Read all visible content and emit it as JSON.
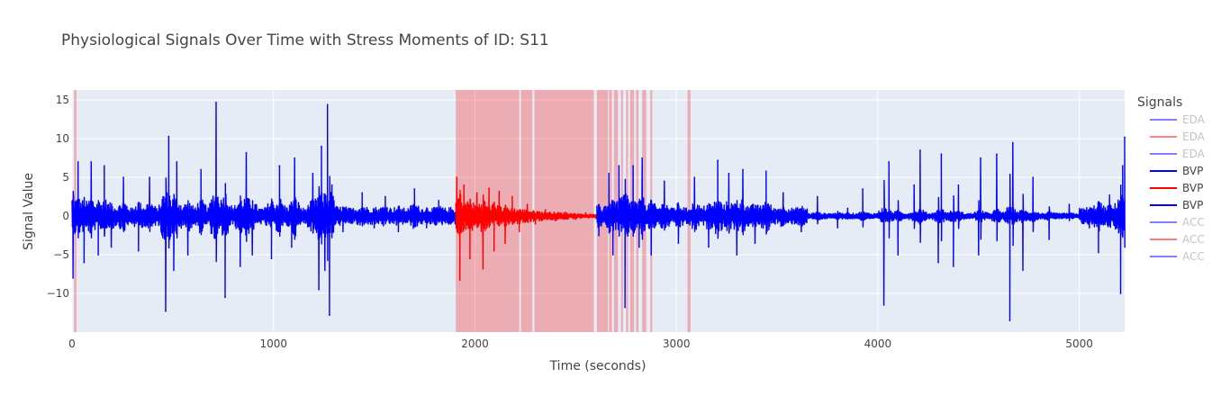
{
  "chart_data": {
    "type": "line",
    "title": "Physiological Signals Over Time with Stress Moments of ID: S11",
    "xlabel": "Time (seconds)",
    "ylabel": "Signal Value",
    "xlim": [
      0,
      5225
    ],
    "ylim": [
      -15,
      16.3
    ],
    "x_ticks": [
      0,
      1000,
      2000,
      3000,
      4000,
      5000
    ],
    "x_tick_labels": [
      "0",
      "1000",
      "2000",
      "3000",
      "4000",
      "5000"
    ],
    "y_ticks": [
      -10,
      -5,
      0,
      5,
      10,
      15
    ],
    "y_tick_labels": [
      "−10",
      "−5",
      "0",
      "5",
      "10",
      "15"
    ],
    "grid": true,
    "stress_regions": [
      [
        10,
        22
      ],
      [
        1905,
        2220
      ],
      [
        2228,
        2285
      ],
      [
        2295,
        2590
      ],
      [
        2605,
        2660
      ],
      [
        2665,
        2680
      ],
      [
        2690,
        2710
      ],
      [
        2725,
        2735
      ],
      [
        2750,
        2760
      ],
      [
        2770,
        2790
      ],
      [
        2800,
        2812
      ],
      [
        2830,
        2850
      ],
      [
        2870,
        2880
      ],
      [
        3055,
        3070
      ]
    ],
    "legend_title": "Signals",
    "legend_placement": "right",
    "legend": [
      {
        "name": "EDA",
        "color": "#0000ff",
        "faded": true
      },
      {
        "name": "EDA",
        "color": "#ff0000",
        "faded": true
      },
      {
        "name": "EDA",
        "color": "#0000ff",
        "faded": true
      },
      {
        "name": "BVP",
        "color": "#0000ff",
        "faded": false
      },
      {
        "name": "BVP",
        "color": "#ff0000",
        "faded": false
      },
      {
        "name": "BVP",
        "color": "#0000ff",
        "faded": false
      },
      {
        "name": "ACC",
        "color": "#0000ff",
        "faded": true
      },
      {
        "name": "ACC",
        "color": "#ff0000",
        "faded": true
      },
      {
        "name": "ACC",
        "color": "#0000ff",
        "faded": true
      }
    ],
    "series": [
      {
        "name": "BVP",
        "color": "#0000ff",
        "segment": [
          0,
          1905
        ],
        "x": [
          5,
          30,
          60,
          95,
          130,
          160,
          195,
          255,
          330,
          385,
          465,
          480,
          505,
          520,
          575,
          640,
          715,
          760,
          835,
          865,
          895,
          990,
          1030,
          1090,
          1105,
          1195,
          1225,
          1238,
          1255,
          1268,
          1278,
          1290,
          1345,
          1440,
          1500,
          1555,
          1620,
          1700,
          1760,
          1820,
          1880
        ],
        "y": [
          -8,
          7,
          -6,
          7,
          -5,
          6.5,
          -4,
          5,
          -4.5,
          5,
          -12.3,
          10.3,
          -7,
          7,
          -5,
          6,
          14.7,
          -10.5,
          -6.5,
          8.2,
          -5,
          -5.5,
          6.5,
          -4,
          7.5,
          5.5,
          -9.5,
          9,
          -7,
          14.4,
          -12.8,
          4,
          -2,
          3,
          -1.5,
          2.5,
          -2,
          3.5,
          -1.5,
          2,
          -1
        ]
      },
      {
        "name": "BVP",
        "color": "#ff0000",
        "segment": [
          1905,
          2605
        ],
        "x": [
          1910,
          1925,
          1945,
          1975,
          2010,
          2040,
          2070,
          2095,
          2120,
          2150,
          2185,
          2220,
          2260,
          2300,
          2350,
          2400,
          2450,
          2500,
          2550,
          2600
        ],
        "y": [
          5,
          -8.3,
          4,
          -5.5,
          3,
          -6.8,
          3.6,
          -4.5,
          3.2,
          -3.5,
          2.5,
          -2,
          1.5,
          -1,
          0.8,
          -0.6,
          0.5,
          -0.4,
          0.4,
          -0.3
        ]
      },
      {
        "name": "BVP",
        "color": "#0000ff",
        "segment": [
          2605,
          5225
        ],
        "x": [
          2615,
          2665,
          2685,
          2715,
          2745,
          2785,
          2815,
          2830,
          2875,
          2940,
          3010,
          3090,
          3160,
          3205,
          3260,
          3300,
          3330,
          3390,
          3445,
          3530,
          3620,
          3700,
          3800,
          3850,
          3925,
          4030,
          4055,
          4100,
          4180,
          4210,
          4300,
          4315,
          4375,
          4400,
          4500,
          4510,
          4590,
          4655,
          4670,
          4720,
          4770,
          4850,
          4950,
          5050,
          5095,
          5150,
          5205,
          5215,
          5225
        ],
        "y": [
          -2.5,
          5.5,
          -5,
          6.5,
          -11.8,
          6.5,
          -4,
          7.5,
          -5,
          4.5,
          -3.5,
          5,
          -4,
          7.2,
          5.5,
          -5,
          6,
          -3.5,
          5.8,
          3,
          -2,
          2.5,
          -1.5,
          1,
          3.5,
          -11.5,
          7,
          -5,
          4,
          8.5,
          -6,
          8,
          -6.5,
          4,
          -5,
          7.5,
          8,
          -13.5,
          9.5,
          -7,
          5,
          -3,
          1.5,
          -1.5,
          -4.7,
          2.7,
          -10,
          6.5,
          10.2
        ]
      }
    ]
  }
}
